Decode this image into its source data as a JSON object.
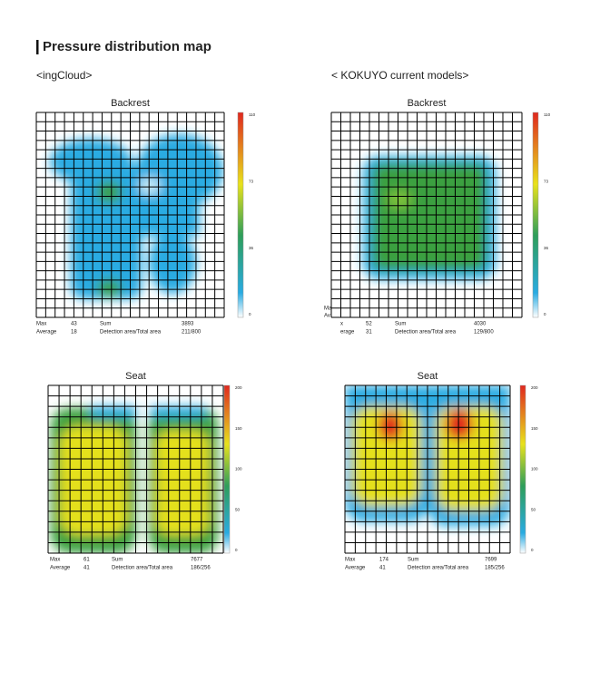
{
  "title": "Pressure distribution map",
  "panels": [
    {
      "label": "<ingCloud>",
      "maps": [
        {
          "title": "Backrest",
          "scale_ticks": [
            110,
            73,
            36,
            0
          ],
          "stats": {
            "max_label": "Max",
            "max": 43,
            "average_label": "Average",
            "average": 18,
            "sum_label": "Sum",
            "sum": 3893,
            "area_label": "Detection area/Total area",
            "area": "211/800"
          }
        },
        {
          "title": "Seat",
          "scale_ticks": [
            200,
            150,
            100,
            50,
            0
          ],
          "stats": {
            "max_label": "Max",
            "max": 61,
            "average_label": "Average",
            "average": 41,
            "sum_label": "Sum",
            "sum": 7677,
            "area_label": "Detection area/Total area",
            "area": "186/256"
          }
        }
      ]
    },
    {
      "label": "< KOKUYO current models>",
      "maps": [
        {
          "title": "Backrest",
          "scale_ticks": [
            110,
            73,
            36,
            0
          ],
          "stats": {
            "max_label": "x",
            "max": 52,
            "average_label": "erage",
            "average": 31,
            "sum_label": "Sum",
            "sum": 4030,
            "area_label": "Detection area/Total area",
            "area": "129/800"
          },
          "fragments": [
            "Ma",
            "Av"
          ]
        },
        {
          "title": "Seat",
          "scale_ticks": [
            200,
            150,
            100,
            50,
            0
          ],
          "stats": {
            "max_label": "Max",
            "max": 174,
            "average_label": "Average",
            "average": 41,
            "sum_label": "Sum",
            "sum": 7699,
            "area_label": "Detection area/Total area",
            "area": "185/256"
          }
        }
      ]
    }
  ]
}
